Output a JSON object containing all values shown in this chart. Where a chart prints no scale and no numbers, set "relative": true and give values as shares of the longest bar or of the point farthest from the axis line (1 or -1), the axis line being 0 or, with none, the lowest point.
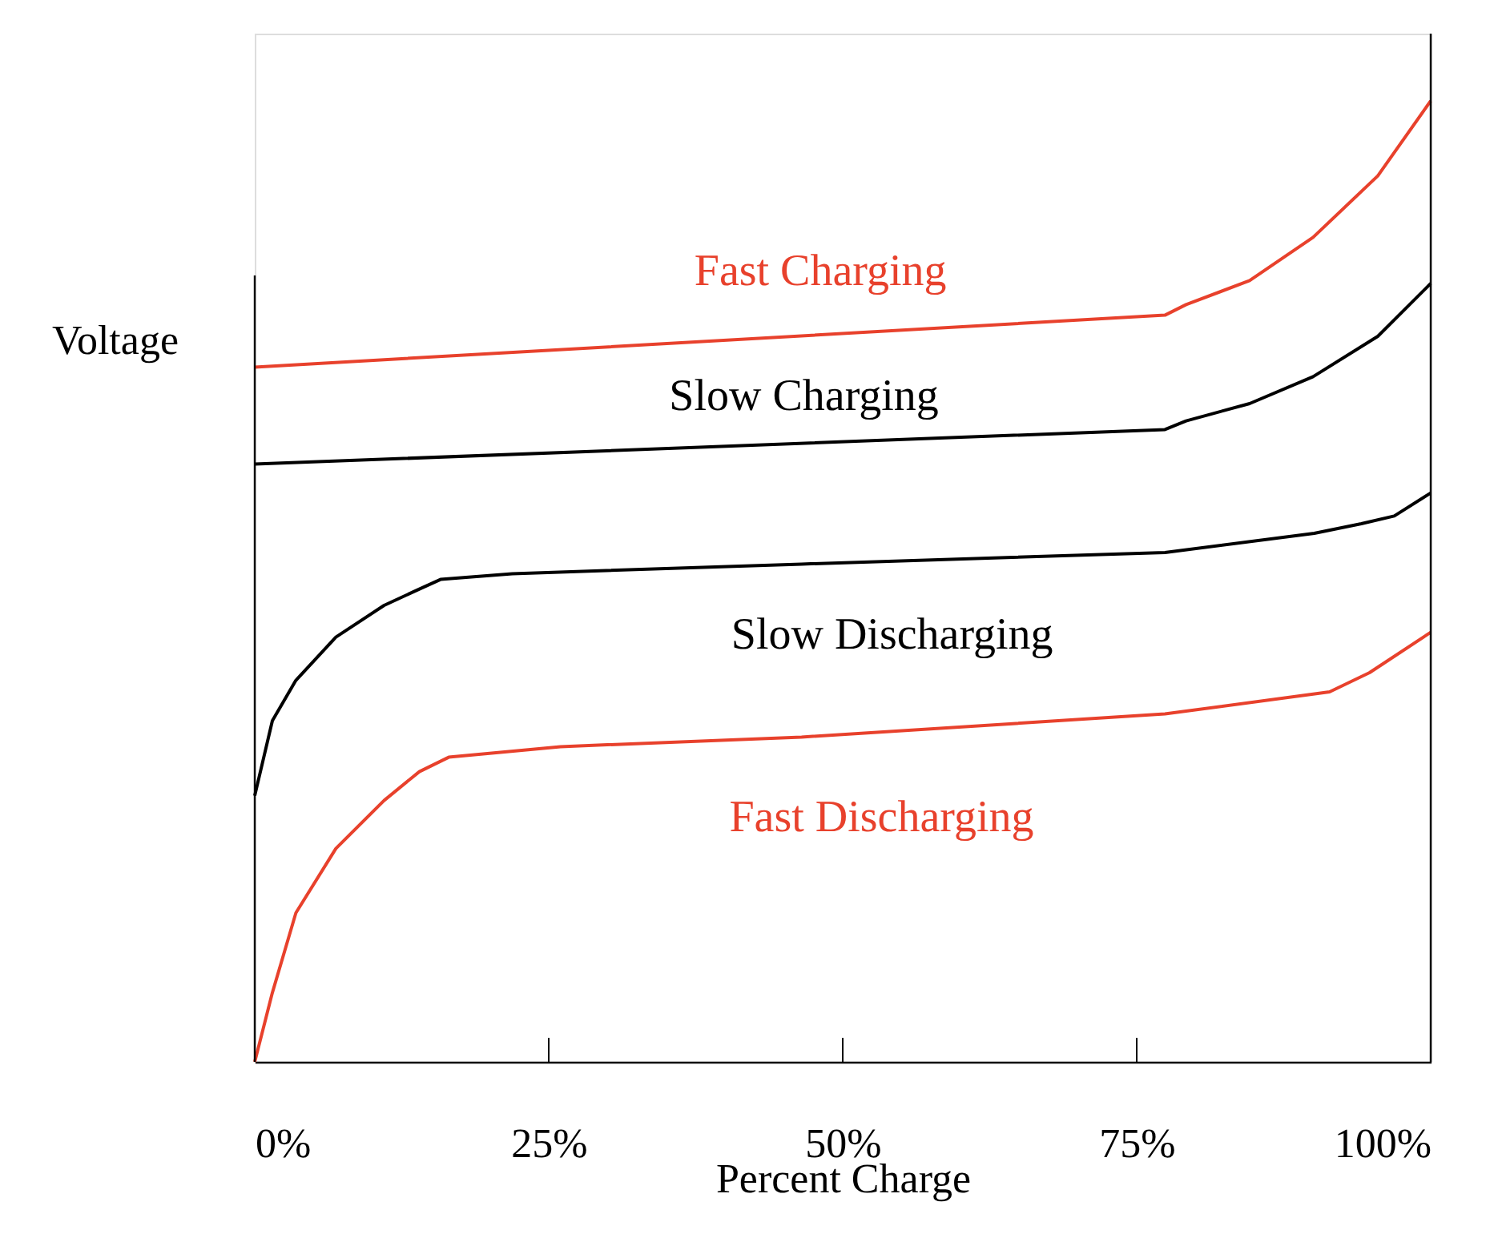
{
  "chart_data": {
    "type": "line",
    "relative": true,
    "xlabel": "Percent Charge",
    "ylabel": "Voltage",
    "xlim": [
      0,
      100
    ],
    "xticks": [
      {
        "value": 0,
        "label": "0%"
      },
      {
        "value": 25,
        "label": "25%"
      },
      {
        "value": 50,
        "label": "50%"
      },
      {
        "value": 75,
        "label": "75%"
      },
      {
        "value": 100,
        "label": "100%"
      }
    ],
    "grid": false,
    "legend": false,
    "marker": "none",
    "line_style": "solid",
    "series": [
      {
        "name": "Fast Charging",
        "color": "#e8412c",
        "x": [
          0,
          77.4,
          79.2,
          84.6,
          90.0,
          95.5,
          100
        ],
        "values": [
          0.723,
          0.777,
          0.788,
          0.813,
          0.858,
          0.922,
          1
        ]
      },
      {
        "name": "Slow Charging",
        "color": "#000000",
        "x": [
          0,
          77.4,
          79.2,
          84.6,
          90.0,
          95.5,
          100
        ],
        "values": [
          0.622,
          0.658,
          0.667,
          0.685,
          0.713,
          0.755,
          0.81
        ]
      },
      {
        "name": "Slow Discharging",
        "color": "#000000",
        "x": [
          0,
          1.5,
          3.5,
          6.9,
          11.0,
          14.0,
          15.8,
          21.9,
          46.5,
          77.4,
          90.1,
          94.1,
          96.9,
          100
        ],
        "values": [
          0.277,
          0.355,
          0.397,
          0.442,
          0.475,
          0.492,
          0.502,
          0.508,
          0.518,
          0.53,
          0.55,
          0.56,
          0.568,
          0.592
        ]
      },
      {
        "name": "Fast Discharging",
        "color": "#e8412c",
        "x": [
          0,
          1.5,
          3.5,
          6.9,
          11.0,
          14.0,
          16.5,
          26.0,
          46.5,
          77.4,
          91.4,
          94.8,
          100
        ],
        "values": [
          0,
          0.072,
          0.155,
          0.222,
          0.272,
          0.302,
          0.317,
          0.328,
          0.338,
          0.362,
          0.385,
          0.405,
          0.447
        ]
      }
    ]
  }
}
